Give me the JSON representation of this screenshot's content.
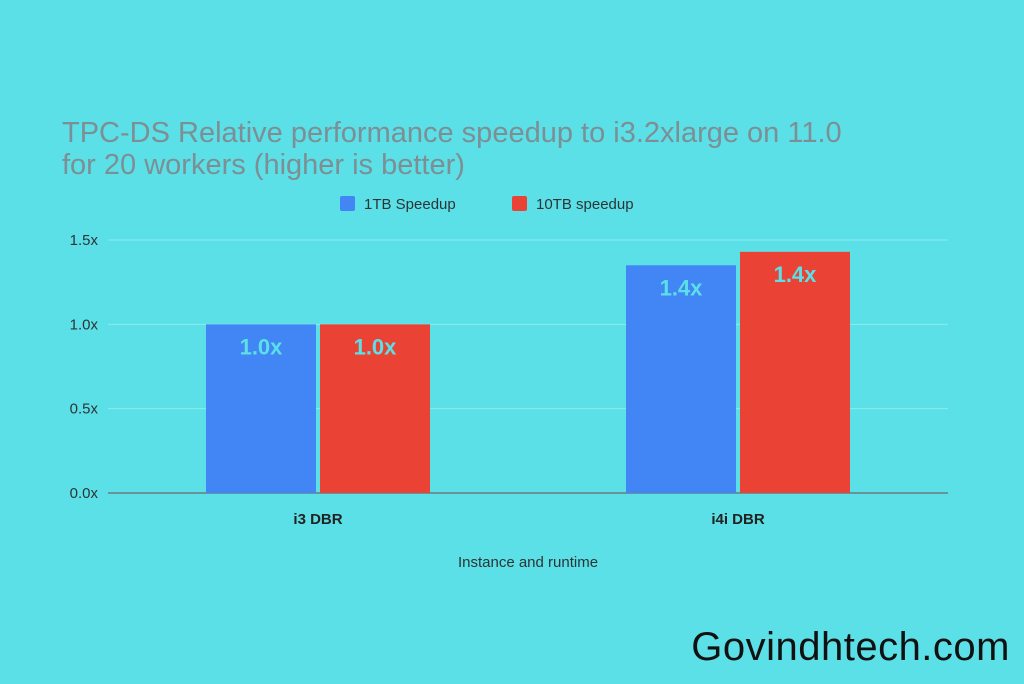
{
  "colors": {
    "background": "#5ae0e6",
    "series_1": "#4285f4",
    "series_2": "#ea4335",
    "gridline": "#8eeaee",
    "axis": "#6b7b7e"
  },
  "chart_data": {
    "type": "bar",
    "title_lines": [
      "TPC-DS Relative performance speedup to i3.2xlarge on 11.0",
      "for 20 workers (higher is better)"
    ],
    "categories": [
      "i3 DBR",
      "i4i DBR"
    ],
    "series": [
      {
        "name": "1TB Speedup",
        "values": [
          1.0,
          1.35
        ],
        "labels": [
          "1.0x",
          "1.4x"
        ],
        "color": "#4285f4"
      },
      {
        "name": "10TB speedup",
        "values": [
          1.0,
          1.43
        ],
        "labels": [
          "1.0x",
          "1.4x"
        ],
        "color": "#ea4335"
      }
    ],
    "xlabel": "Instance and runtime",
    "ylabel": "",
    "ylim": [
      0,
      1.5
    ],
    "yticks": [
      "0.0x",
      "0.5x",
      "1.0x",
      "1.5x"
    ],
    "ytick_values": [
      0,
      0.5,
      1.0,
      1.5
    ],
    "legend_position": "top-center",
    "grid": true
  },
  "watermark": "Govindhtech.com"
}
